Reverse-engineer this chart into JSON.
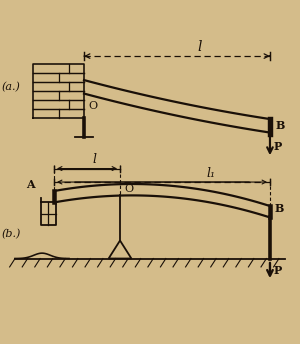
{
  "bg_color": "#d4bc8a",
  "line_color": "#1a1008",
  "fig_width": 3.0,
  "fig_height": 3.44,
  "dpi": 100,
  "label_a": "(a.)",
  "label_b": "(b.)",
  "label_O_a": "O",
  "label_B_a": "B",
  "label_P_a": "P",
  "label_l_a": "l",
  "label_A_b": "A",
  "label_B_b": "B",
  "label_O_b": "O",
  "label_P_b": "P",
  "label_l_b": "l",
  "label_l1_b": "l₁"
}
